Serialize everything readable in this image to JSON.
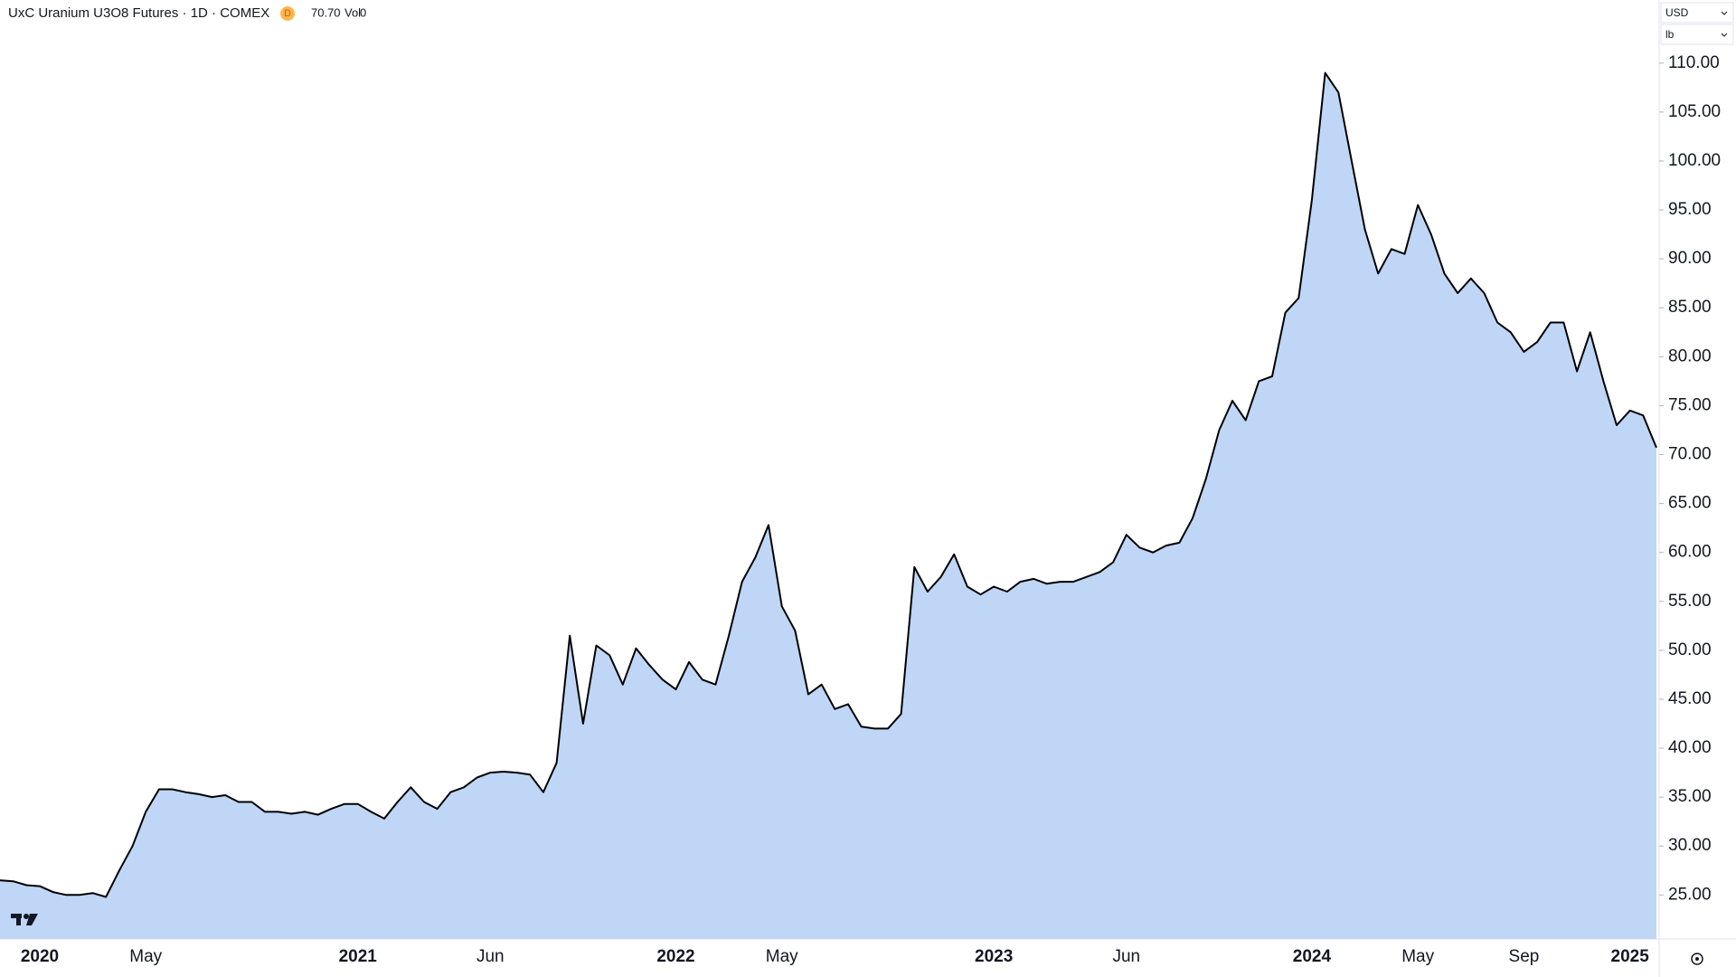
{
  "header": {
    "symbol": "UxC Uranium U3O8 Futures · 1D · COMEX",
    "badge": "D",
    "last": "70.70",
    "volume_label": "Vol",
    "volume": "0",
    "currency": "USD",
    "unit": "lb"
  },
  "chart_data": {
    "type": "area",
    "color": "#000000",
    "fill": "#bfd6f6",
    "grid": false,
    "axis_side": "right",
    "categories": [
      null,
      null,
      null,
      "2020",
      null,
      null,
      null,
      null,
      null,
      null,
      null,
      "May",
      null,
      null,
      null,
      null,
      null,
      null,
      null,
      null,
      null,
      null,
      null,
      null,
      null,
      null,
      null,
      "2021",
      null,
      null,
      null,
      null,
      null,
      null,
      null,
      null,
      null,
      "Jun",
      null,
      null,
      null,
      null,
      null,
      null,
      null,
      null,
      null,
      null,
      null,
      null,
      null,
      "2022",
      null,
      null,
      null,
      null,
      null,
      null,
      null,
      "May",
      null,
      null,
      null,
      null,
      null,
      null,
      null,
      null,
      null,
      null,
      null,
      null,
      null,
      null,
      null,
      "2023",
      null,
      null,
      null,
      null,
      null,
      null,
      null,
      null,
      null,
      "Jun",
      null,
      null,
      null,
      null,
      null,
      null,
      null,
      null,
      null,
      null,
      null,
      null,
      null,
      "2024",
      null,
      null,
      null,
      null,
      null,
      null,
      null,
      "May",
      null,
      null,
      null,
      null,
      null,
      null,
      null,
      "Sep",
      null,
      null,
      null,
      null,
      null,
      null,
      null,
      "2025",
      null,
      null
    ],
    "values": [
      26.5,
      26.4,
      26.0,
      25.9,
      25.3,
      25.0,
      25.0,
      25.2,
      24.8,
      27.5,
      30.0,
      33.5,
      35.8,
      35.8,
      35.5,
      35.3,
      35.0,
      35.2,
      34.5,
      34.5,
      33.5,
      33.5,
      33.3,
      33.5,
      33.2,
      33.8,
      34.3,
      34.3,
      33.5,
      32.8,
      34.5,
      36.0,
      34.5,
      33.8,
      35.5,
      36.0,
      37.0,
      37.5,
      37.6,
      37.5,
      37.3,
      35.5,
      38.5,
      51.5,
      42.5,
      50.5,
      49.5,
      46.5,
      50.2,
      48.5,
      47.0,
      46.0,
      48.8,
      47.0,
      46.5,
      51.5,
      57.0,
      59.5,
      62.8,
      54.5,
      52.0,
      45.5,
      46.5,
      44.0,
      44.5,
      42.2,
      42.0,
      42.0,
      43.5,
      58.5,
      56.0,
      57.5,
      59.8,
      56.5,
      55.7,
      56.5,
      56.0,
      57.0,
      57.3,
      56.8,
      57.0,
      57.0,
      57.5,
      58.0,
      59.0,
      61.8,
      60.5,
      60.0,
      60.7,
      61.0,
      63.5,
      67.5,
      72.5,
      75.5,
      73.5,
      77.5,
      78.0,
      84.5,
      86.0,
      96,
      109,
      107,
      100,
      93,
      88.5,
      91,
      90.5,
      95.5,
      92.5,
      88.5,
      86.5,
      88,
      86.5,
      83.5,
      82.5,
      80.5,
      81.5,
      83.5,
      83.5,
      78.5,
      82.5,
      77.5,
      73.0,
      74.5,
      74.0,
      70.7
    ],
    "ylim": [
      20.5,
      116.45
    ],
    "yticks": [
      {
        "value": 25,
        "label": "25.00"
      },
      {
        "value": 30,
        "label": "30.00"
      },
      {
        "value": 35,
        "label": "35.00"
      },
      {
        "value": 40,
        "label": "40.00"
      },
      {
        "value": 45,
        "label": "45.00"
      },
      {
        "value": 50,
        "label": "50.00"
      },
      {
        "value": 55,
        "label": "55.00"
      },
      {
        "value": 60,
        "label": "60.00"
      },
      {
        "value": 65,
        "label": "65.00"
      },
      {
        "value": 70,
        "label": "70.00"
      },
      {
        "value": 75,
        "label": "75.00"
      },
      {
        "value": 80,
        "label": "80.00"
      },
      {
        "value": 85,
        "label": "85.00"
      },
      {
        "value": 90,
        "label": "90.00"
      },
      {
        "value": 95,
        "label": "95.00"
      },
      {
        "value": 100,
        "label": "100.00"
      },
      {
        "value": 105,
        "label": "105.00"
      },
      {
        "value": 110,
        "label": "110.00"
      }
    ]
  }
}
